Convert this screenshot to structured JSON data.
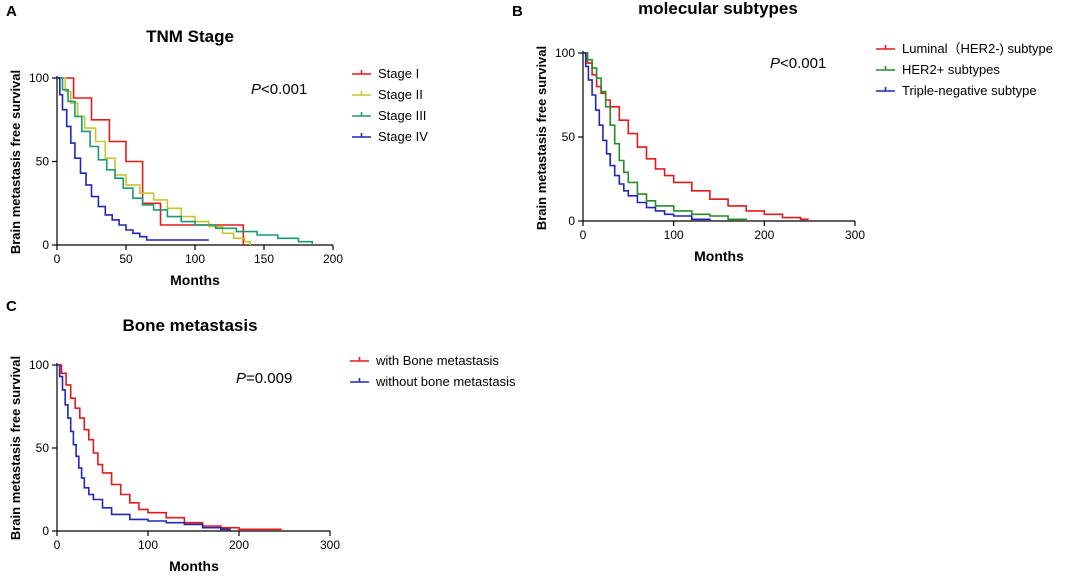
{
  "chart_data": [
    {
      "panel": "A",
      "type": "line",
      "subtype": "kaplan-meier",
      "title": "TNM Stage",
      "xlabel": "Months",
      "ylabel": "Brain metastasis free survival",
      "xlim": [
        0,
        200
      ],
      "ylim": [
        0,
        100
      ],
      "xticks": [
        "0",
        "50",
        "100",
        "150",
        "200"
      ],
      "yticks": [
        "0",
        "50",
        "100"
      ],
      "pvalue_label": "P",
      "pvalue_value": "<0.001",
      "series": [
        {
          "name": "Stage I",
          "color": "#e31a1c",
          "x": [
            0,
            12,
            12,
            25,
            25,
            38,
            38,
            50,
            50,
            62,
            62,
            75,
            75,
            100,
            100,
            135,
            135
          ],
          "y": [
            100,
            100,
            88,
            88,
            75,
            75,
            62,
            62,
            50,
            50,
            25,
            25,
            12,
            12,
            12,
            12,
            0
          ]
        },
        {
          "name": "Stage II",
          "color": "#c6c62e",
          "x": [
            0,
            6,
            10,
            15,
            20,
            28,
            35,
            42,
            50,
            60,
            70,
            80,
            90,
            100,
            110,
            120,
            128,
            136,
            140
          ],
          "y": [
            100,
            92,
            85,
            77,
            70,
            62,
            52,
            42,
            36,
            31,
            27,
            22,
            17,
            14,
            11,
            7,
            4,
            2,
            0
          ]
        },
        {
          "name": "Stage III",
          "color": "#1a9a73",
          "x": [
            0,
            4,
            8,
            13,
            18,
            24,
            30,
            36,
            42,
            48,
            55,
            62,
            70,
            80,
            90,
            100,
            115,
            130,
            145,
            160,
            175,
            185
          ],
          "y": [
            100,
            93,
            86,
            77,
            68,
            59,
            51,
            45,
            40,
            34,
            28,
            24,
            21,
            17,
            14,
            12,
            10,
            8,
            6,
            4,
            2,
            0
          ]
        },
        {
          "name": "Stage IV",
          "color": "#2027b5",
          "x": [
            0,
            2,
            4,
            7,
            10,
            13,
            17,
            21,
            25,
            30,
            35,
            40,
            45,
            50,
            55,
            60,
            65,
            75,
            85,
            100,
            110
          ],
          "y": [
            100,
            90,
            81,
            71,
            61,
            52,
            43,
            36,
            29,
            23,
            18,
            15,
            12,
            9,
            7,
            5,
            3,
            3,
            3,
            3,
            3
          ]
        }
      ]
    },
    {
      "panel": "B",
      "type": "line",
      "subtype": "kaplan-meier",
      "title": "molecular subtypes",
      "xlabel": "Months",
      "ylabel": "Brain metastasis free survival",
      "xlim": [
        0,
        300
      ],
      "ylim": [
        0,
        100
      ],
      "xticks": [
        "0",
        "100",
        "200",
        "300"
      ],
      "yticks": [
        "0",
        "50",
        "100"
      ],
      "pvalue_label": "P",
      "pvalue_value": "<0.001",
      "series": [
        {
          "name": "Luminal（HER2-) subtype",
          "color": "#e31a1c",
          "x": [
            0,
            5,
            10,
            15,
            20,
            25,
            30,
            40,
            50,
            60,
            70,
            80,
            90,
            100,
            120,
            140,
            160,
            180,
            200,
            220,
            240,
            248
          ],
          "y": [
            100,
            94,
            87,
            80,
            76,
            72,
            68,
            60,
            52,
            44,
            37,
            31,
            27,
            23,
            18,
            13,
            9,
            6,
            4,
            2,
            1,
            0
          ]
        },
        {
          "name": "HER2+ subtypes",
          "color": "#2a8a2a",
          "x": [
            0,
            5,
            10,
            15,
            20,
            25,
            30,
            35,
            40,
            45,
            50,
            60,
            70,
            80,
            100,
            120,
            140,
            160,
            180
          ],
          "y": [
            100,
            96,
            91,
            85,
            77,
            68,
            57,
            46,
            36,
            29,
            23,
            16,
            12,
            9,
            6,
            4,
            3,
            1,
            0
          ]
        },
        {
          "name": "Triple-negative subtype",
          "color": "#2027b5",
          "x": [
            0,
            3,
            6,
            10,
            14,
            18,
            22,
            26,
            30,
            35,
            40,
            45,
            50,
            60,
            70,
            80,
            90,
            100,
            120,
            140
          ],
          "y": [
            100,
            92,
            84,
            75,
            66,
            57,
            48,
            40,
            33,
            27,
            22,
            18,
            15,
            11,
            8,
            6,
            4,
            3,
            1,
            0
          ]
        }
      ]
    },
    {
      "panel": "C",
      "type": "line",
      "subtype": "kaplan-meier",
      "title": "Bone metastasis",
      "xlabel": "Months",
      "ylabel": "Brain metastasis free survival",
      "xlim": [
        0,
        300
      ],
      "ylim": [
        0,
        100
      ],
      "xticks": [
        "0",
        "100",
        "200",
        "300"
      ],
      "yticks": [
        "0",
        "50",
        "100"
      ],
      "pvalue_label": "P",
      "pvalue_value": "=0.009",
      "series": [
        {
          "name": "with Bone metastasis",
          "color": "#e31a1c",
          "x": [
            0,
            5,
            10,
            15,
            20,
            25,
            30,
            35,
            40,
            45,
            50,
            60,
            70,
            80,
            90,
            100,
            120,
            140,
            160,
            180,
            200,
            220,
            246
          ],
          "y": [
            100,
            95,
            88,
            80,
            74,
            68,
            61,
            55,
            47,
            40,
            35,
            28,
            22,
            17,
            13,
            11,
            8,
            5,
            3,
            2,
            1,
            1,
            0
          ]
        },
        {
          "name": "without bone metastasis",
          "color": "#2027b5",
          "x": [
            0,
            3,
            6,
            9,
            12,
            15,
            18,
            21,
            24,
            27,
            30,
            35,
            40,
            50,
            60,
            80,
            100,
            120,
            140,
            160,
            180,
            190
          ],
          "y": [
            100,
            93,
            85,
            76,
            68,
            60,
            52,
            45,
            38,
            32,
            26,
            22,
            19,
            14,
            10,
            7,
            6,
            5,
            4,
            2,
            1,
            0
          ]
        }
      ]
    }
  ]
}
